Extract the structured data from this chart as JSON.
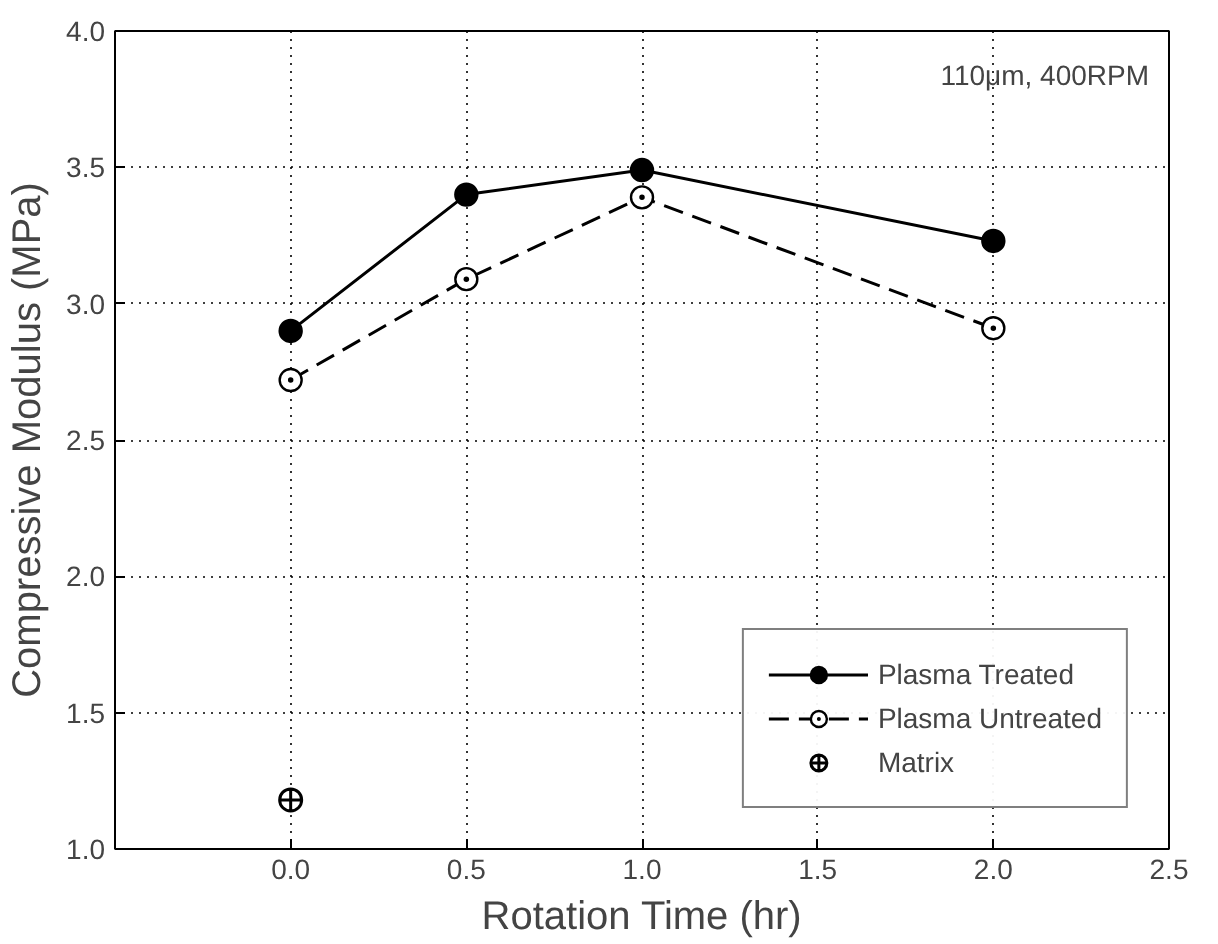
{
  "chart_data": {
    "type": "line",
    "xlabel": "Rotation Time (hr)",
    "ylabel": "Compressive Modulus (MPa)",
    "annotations": [
      "110μm, 400RPM"
    ],
    "xlim": [
      -0.5,
      2.5
    ],
    "xticks": [
      {
        "value": 0,
        "label": "0.0"
      },
      0.5,
      {
        "value": 1,
        "label": "1.0"
      },
      1.5,
      {
        "value": 2,
        "label": "2.0"
      },
      2.5
    ],
    "ylim": [
      1.0,
      4.0
    ],
    "yticks": [
      {
        "value": 1,
        "label": "1.0"
      },
      1.5,
      {
        "value": 2,
        "label": "2.0"
      },
      2.5,
      {
        "value": 3,
        "label": "3.0"
      },
      3.5,
      {
        "value": 4,
        "label": "4.0"
      }
    ],
    "grid": true,
    "legend": "bottom right",
    "series": [
      {
        "name": "Plasma Treated",
        "color": "#000000",
        "x": [
          0,
          0.5,
          1.0,
          2.0
        ],
        "values": [
          2.9,
          3.4,
          3.49,
          3.23
        ],
        "marker": "circle",
        "line_style": "solid"
      },
      {
        "name": "Plasma Untreated",
        "color": "#000000",
        "x": [
          0,
          0.5,
          1.0,
          2.0
        ],
        "values": [
          2.72,
          3.09,
          3.39,
          2.91
        ],
        "marker": "circle_dot",
        "line_style": "dashed"
      },
      {
        "name": "Matrix",
        "type": "scatter",
        "color": "#000000",
        "x": [
          0
        ],
        "values": [
          1.18
        ],
        "marker": "circle_cross"
      }
    ]
  }
}
